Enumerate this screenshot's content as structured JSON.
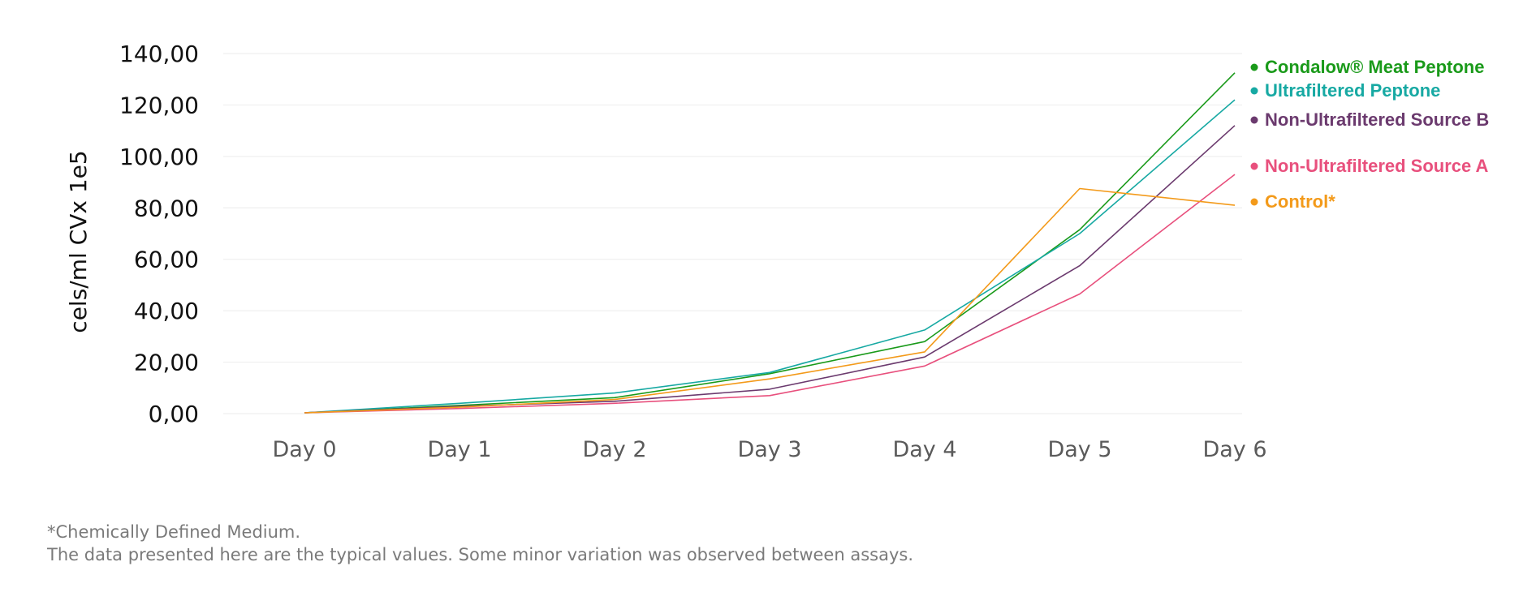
{
  "chart_data": {
    "type": "line",
    "ylabel": "cels/ml CVx 1e5",
    "ylim": [
      0,
      140
    ],
    "y_ticks": [
      "0,00",
      "20,00",
      "40,00",
      "60,00",
      "80,00",
      "100,00",
      "120,00",
      "140,00"
    ],
    "y_tick_values": [
      0,
      20,
      40,
      60,
      80,
      100,
      120,
      140
    ],
    "categories": [
      "Day 0",
      "Day 1",
      "Day 2",
      "Day 3",
      "Day 4",
      "Day 5",
      "Day 6"
    ],
    "grid": true,
    "legend_position": "right",
    "series": [
      {
        "name": "Condalow® Meat Peptone",
        "color": "#1a9a1a",
        "values": [
          0.3,
          3.2,
          6.2,
          15.5,
          28.0,
          71.5,
          132.5
        ]
      },
      {
        "name": "Ultrafiltered Peptone",
        "color": "#17a9a3",
        "values": [
          0.3,
          4.0,
          8.0,
          16.0,
          32.5,
          70.0,
          122.0
        ]
      },
      {
        "name": "Non-Ultrafiltered Source B",
        "color": "#6b3a6e",
        "values": [
          0.3,
          2.8,
          4.8,
          9.5,
          22.0,
          57.5,
          112.0
        ]
      },
      {
        "name": "Non-Ultrafiltered Source A",
        "color": "#e8507d",
        "values": [
          0.3,
          2.0,
          4.0,
          7.0,
          18.5,
          46.5,
          93.0
        ]
      },
      {
        "name": "Control*",
        "color": "#f39a1a",
        "values": [
          0.3,
          2.5,
          5.5,
          13.5,
          24.0,
          87.5,
          81.0
        ]
      }
    ]
  },
  "footnotes": {
    "line1": "*Chemically Defined Medium.",
    "line2": "The data presented here are the typical values. Some minor variation was observed between assays."
  }
}
